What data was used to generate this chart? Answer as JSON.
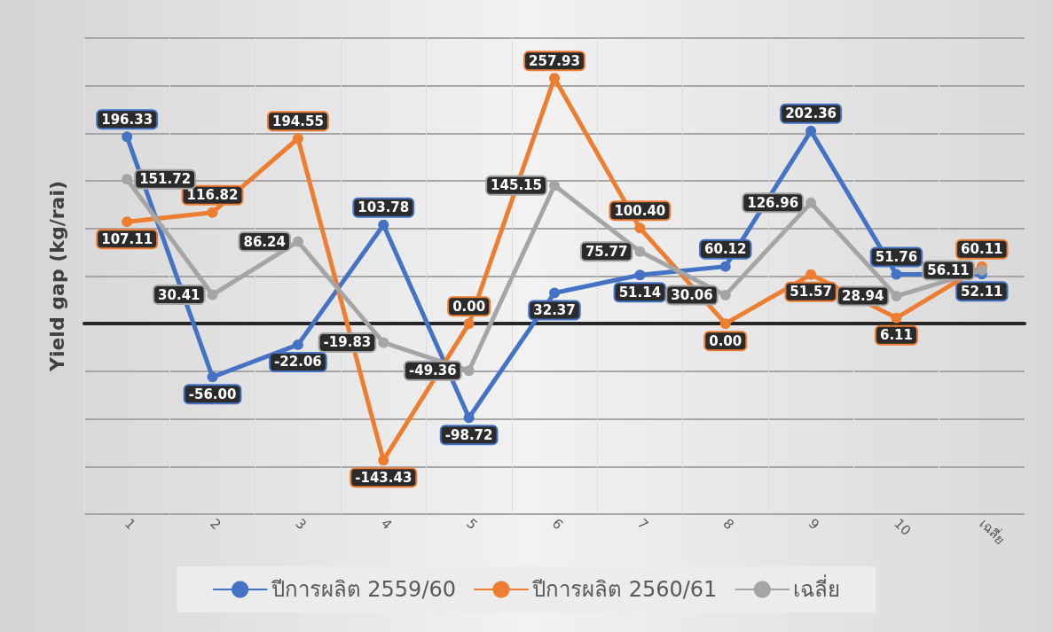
{
  "chart_data": {
    "type": "line",
    "ylabel": "Yield gap (kg/rai)",
    "categories": [
      "1",
      "2",
      "3",
      "4",
      "5",
      "6",
      "7",
      "8",
      "9",
      "10",
      "เฉลี่ย"
    ],
    "series": [
      {
        "name": "ปีการผลิต 2559/60",
        "color": "#4472c4",
        "values": [
          196.33,
          -56.0,
          -22.06,
          103.78,
          -98.72,
          32.37,
          51.14,
          60.12,
          202.36,
          51.76,
          52.11
        ],
        "value_labels": [
          "196.33",
          "-56.00",
          "-22.06",
          "103.78",
          "-98.72",
          "32.37",
          "51.14",
          "60.12",
          "202.36",
          "51.76",
          "52.11"
        ]
      },
      {
        "name": "ปีการผลิต 2560/61",
        "color": "#ed7d31",
        "values": [
          107.11,
          116.82,
          194.55,
          -143.43,
          0.0,
          257.93,
          100.4,
          0.0,
          51.57,
          6.11,
          60.11
        ],
        "value_labels": [
          "107.11",
          "116.82",
          "194.55",
          "-143.43",
          "0.00",
          "257.93",
          "100.40",
          "0.00",
          "51.57",
          "6.11",
          "60.11"
        ]
      },
      {
        "name": "เฉลี่ย",
        "color": "#a5a5a5",
        "values": [
          151.72,
          30.41,
          86.24,
          -19.83,
          -49.36,
          145.15,
          75.77,
          30.06,
          126.96,
          28.94,
          56.11
        ],
        "value_labels": [
          "151.72",
          "30.41",
          "86.24",
          "-19.83",
          "-49.36",
          "145.15",
          "75.77",
          "30.06",
          "126.96",
          "28.94",
          "56.11"
        ]
      }
    ],
    "ylim": [
      -200,
      300
    ],
    "yticks": [
      {
        "value": -200,
        "label": null
      },
      {
        "value": -150,
        "label": null
      },
      {
        "value": -100,
        "label": null
      },
      {
        "value": -50,
        "label": null
      },
      {
        "value": 0,
        "label": null
      },
      {
        "value": 50,
        "label": null
      },
      {
        "value": 100,
        "label": null
      },
      {
        "value": 150,
        "label": null
      },
      {
        "value": 200,
        "label": null
      },
      {
        "value": 250,
        "label": null
      },
      {
        "value": 300,
        "label": null
      }
    ],
    "tick_labels": "x",
    "grid": true,
    "legend": "bottom",
    "marker": "circle",
    "line_style": "solid"
  }
}
